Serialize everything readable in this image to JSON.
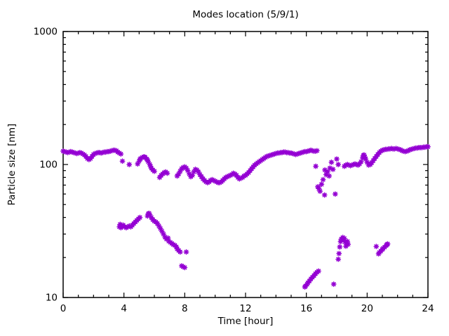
{
  "chart_data": {
    "type": "scatter",
    "title": "Modes location (5/9/1)",
    "xlabel": "Time [hour]",
    "ylabel": "Particle size [nm]",
    "xlim": [
      0,
      24
    ],
    "ylim": [
      10,
      1000
    ],
    "yscale": "log",
    "grid": false,
    "legend": "none",
    "xticks_major": [
      0,
      4,
      8,
      12,
      16,
      20,
      24
    ],
    "xtick_labels": [
      "0",
      "4",
      "8",
      "12",
      "16",
      "20",
      "24"
    ],
    "xticks_minor_step": 1,
    "yticks_major": [
      10,
      100,
      1000
    ],
    "ytick_labels": [
      "10",
      "100",
      "1000"
    ],
    "marker": {
      "shape": "asterisk",
      "color": "#9400d3",
      "size": 3.2
    },
    "background": "#ffffff",
    "axis_color": "#000000",
    "points": [
      [
        0,
        126
      ],
      [
        0.1,
        125
      ],
      [
        0.2,
        124
      ],
      [
        0.3,
        123
      ],
      [
        0.4,
        124
      ],
      [
        0.5,
        125
      ],
      [
        0.6,
        124
      ],
      [
        0.7,
        123
      ],
      [
        0.8,
        122
      ],
      [
        0.9,
        121
      ],
      [
        1,
        122
      ],
      [
        1.1,
        123
      ],
      [
        1.2,
        122
      ],
      [
        1.3,
        120
      ],
      [
        1.4,
        118
      ],
      [
        1.5,
        115
      ],
      [
        1.6,
        111
      ],
      [
        1.7,
        109
      ],
      [
        1.8,
        111
      ],
      [
        1.9,
        115
      ],
      [
        2,
        119
      ],
      [
        2.1,
        121
      ],
      [
        2.2,
        122
      ],
      [
        2.3,
        123
      ],
      [
        2.4,
        123
      ],
      [
        2.5,
        122
      ],
      [
        2.6,
        123
      ],
      [
        2.7,
        124
      ],
      [
        2.8,
        124
      ],
      [
        2.9,
        125
      ],
      [
        3,
        125
      ],
      [
        3.1,
        126
      ],
      [
        3.2,
        127
      ],
      [
        3.3,
        128
      ],
      [
        3.4,
        128
      ],
      [
        3.5,
        127
      ],
      [
        3.6,
        124
      ],
      [
        3.7,
        122
      ],
      [
        3.8,
        120
      ],
      [
        3.9,
        106
      ],
      [
        4.35,
        100
      ],
      [
        4.9,
        101
      ],
      [
        5,
        106
      ],
      [
        5.05,
        109
      ],
      [
        5.1,
        111
      ],
      [
        5.2,
        113
      ],
      [
        5.3,
        114
      ],
      [
        5.35,
        114
      ],
      [
        5.4,
        113
      ],
      [
        5.5,
        110
      ],
      [
        5.55,
        108
      ],
      [
        5.6,
        105
      ],
      [
        5.7,
        100
      ],
      [
        5.75,
        97
      ],
      [
        5.8,
        94
      ],
      [
        5.9,
        91
      ],
      [
        6,
        89
      ],
      [
        6.35,
        80
      ],
      [
        6.45,
        83
      ],
      [
        6.55,
        85
      ],
      [
        6.65,
        87
      ],
      [
        6.75,
        88
      ],
      [
        6.85,
        86
      ],
      [
        7.5,
        82
      ],
      [
        7.6,
        85
      ],
      [
        7.7,
        89
      ],
      [
        7.8,
        93
      ],
      [
        7.9,
        95
      ],
      [
        8,
        96
      ],
      [
        8.1,
        94
      ],
      [
        8.2,
        90
      ],
      [
        8.3,
        85
      ],
      [
        8.4,
        81
      ],
      [
        8.5,
        83
      ],
      [
        8.6,
        88
      ],
      [
        8.7,
        92
      ],
      [
        8.8,
        91
      ],
      [
        8.9,
        88
      ],
      [
        9,
        84
      ],
      [
        9.1,
        81
      ],
      [
        9.2,
        78
      ],
      [
        9.3,
        76
      ],
      [
        9.4,
        74
      ],
      [
        9.5,
        73
      ],
      [
        9.6,
        74
      ],
      [
        9.7,
        76
      ],
      [
        9.8,
        77
      ],
      [
        9.9,
        76
      ],
      [
        10,
        75
      ],
      [
        10.1,
        74
      ],
      [
        10.2,
        73
      ],
      [
        10.3,
        73
      ],
      [
        10.4,
        74
      ],
      [
        10.5,
        76
      ],
      [
        10.6,
        78
      ],
      [
        10.7,
        80
      ],
      [
        10.8,
        81
      ],
      [
        10.9,
        82
      ],
      [
        11,
        83
      ],
      [
        11.1,
        84
      ],
      [
        11.2,
        86
      ],
      [
        11.3,
        85
      ],
      [
        11.4,
        83
      ],
      [
        11.5,
        80
      ],
      [
        11.6,
        78
      ],
      [
        11.7,
        79
      ],
      [
        11.8,
        80
      ],
      [
        11.9,
        82
      ],
      [
        12,
        83
      ],
      [
        12.1,
        85
      ],
      [
        12.2,
        87
      ],
      [
        12.3,
        90
      ],
      [
        12.4,
        93
      ],
      [
        12.5,
        96
      ],
      [
        12.6,
        99
      ],
      [
        12.7,
        101
      ],
      [
        12.8,
        103
      ],
      [
        12.9,
        105
      ],
      [
        13,
        107
      ],
      [
        13.1,
        109
      ],
      [
        13.2,
        111
      ],
      [
        13.3,
        113
      ],
      [
        13.4,
        115
      ],
      [
        13.5,
        116
      ],
      [
        13.6,
        117
      ],
      [
        13.7,
        118
      ],
      [
        13.8,
        119
      ],
      [
        13.9,
        120
      ],
      [
        14,
        121
      ],
      [
        14.1,
        122
      ],
      [
        14.2,
        122
      ],
      [
        14.3,
        123
      ],
      [
        14.4,
        123
      ],
      [
        14.5,
        124
      ],
      [
        14.6,
        124
      ],
      [
        14.7,
        123
      ],
      [
        14.8,
        123
      ],
      [
        14.9,
        122
      ],
      [
        15,
        122
      ],
      [
        15.1,
        121
      ],
      [
        15.2,
        120
      ],
      [
        15.3,
        119
      ],
      [
        15.4,
        120
      ],
      [
        15.5,
        121
      ],
      [
        15.6,
        122
      ],
      [
        15.7,
        123
      ],
      [
        15.8,
        124
      ],
      [
        15.9,
        125
      ],
      [
        16,
        125
      ],
      [
        16.1,
        126
      ],
      [
        16.2,
        127
      ],
      [
        16.3,
        128
      ],
      [
        16.4,
        127
      ],
      [
        16.5,
        126
      ],
      [
        16.6,
        126
      ],
      [
        16.7,
        127
      ],
      [
        16.62,
        97
      ],
      [
        16.75,
        68
      ],
      [
        16.82,
        66
      ],
      [
        16.9,
        63
      ],
      [
        17,
        71
      ],
      [
        17.1,
        77
      ],
      [
        17.2,
        59
      ],
      [
        17.22,
        91
      ],
      [
        17.3,
        84
      ],
      [
        17.4,
        88
      ],
      [
        17.5,
        82
      ],
      [
        17.55,
        94
      ],
      [
        17.65,
        104
      ],
      [
        17.75,
        92
      ],
      [
        17.9,
        60
      ],
      [
        18,
        110
      ],
      [
        18.1,
        100
      ],
      [
        18.5,
        97
      ],
      [
        18.6,
        99
      ],
      [
        18.7,
        100
      ],
      [
        18.8,
        99
      ],
      [
        18.9,
        98
      ],
      [
        19,
        99
      ],
      [
        19.1,
        100
      ],
      [
        19.2,
        101
      ],
      [
        19.3,
        100
      ],
      [
        19.4,
        99
      ],
      [
        19.5,
        101
      ],
      [
        19.6,
        105
      ],
      [
        19.7,
        112
      ],
      [
        19.75,
        117
      ],
      [
        19.8,
        118
      ],
      [
        19.85,
        114
      ],
      [
        19.9,
        110
      ],
      [
        20,
        104
      ],
      [
        20.1,
        99
      ],
      [
        20.2,
        100
      ],
      [
        20.3,
        103
      ],
      [
        20.4,
        107
      ],
      [
        20.5,
        111
      ],
      [
        20.6,
        115
      ],
      [
        20.7,
        119
      ],
      [
        20.8,
        123
      ],
      [
        20.9,
        126
      ],
      [
        21,
        128
      ],
      [
        21.1,
        129
      ],
      [
        21.2,
        130
      ],
      [
        21.3,
        130
      ],
      [
        21.4,
        131
      ],
      [
        21.5,
        131
      ],
      [
        21.6,
        132
      ],
      [
        21.7,
        131
      ],
      [
        21.8,
        131
      ],
      [
        21.9,
        132
      ],
      [
        22,
        131
      ],
      [
        22.1,
        130
      ],
      [
        22.2,
        129
      ],
      [
        22.3,
        127
      ],
      [
        22.4,
        126
      ],
      [
        22.5,
        125
      ],
      [
        22.6,
        126
      ],
      [
        22.7,
        127
      ],
      [
        22.8,
        129
      ],
      [
        22.9,
        130
      ],
      [
        23,
        131
      ],
      [
        23.1,
        132
      ],
      [
        23.2,
        133
      ],
      [
        23.3,
        133
      ],
      [
        23.4,
        134
      ],
      [
        23.5,
        134
      ],
      [
        23.6,
        134
      ],
      [
        23.7,
        135
      ],
      [
        23.8,
        135
      ],
      [
        23.9,
        136
      ],
      [
        24,
        136
      ],
      [
        3.7,
        34
      ],
      [
        3.75,
        35.5
      ],
      [
        3.8,
        33.5
      ],
      [
        3.85,
        34.5
      ],
      [
        3.95,
        35
      ],
      [
        4.05,
        34
      ],
      [
        4.15,
        33.5
      ],
      [
        4.25,
        34
      ],
      [
        4.35,
        34.5
      ],
      [
        4.45,
        34
      ],
      [
        4.55,
        35
      ],
      [
        4.65,
        36
      ],
      [
        4.75,
        37
      ],
      [
        4.85,
        38
      ],
      [
        4.95,
        39
      ],
      [
        5.05,
        40
      ],
      [
        5.55,
        41
      ],
      [
        5.6,
        42.5
      ],
      [
        5.65,
        43
      ],
      [
        5.7,
        42
      ],
      [
        5.8,
        40
      ],
      [
        5.9,
        38.5
      ],
      [
        6,
        37.5
      ],
      [
        6.1,
        37
      ],
      [
        6.2,
        36
      ],
      [
        6.3,
        34.5
      ],
      [
        6.4,
        33
      ],
      [
        6.5,
        31.5
      ],
      [
        6.6,
        30
      ],
      [
        6.7,
        28.5
      ],
      [
        6.8,
        27.5
      ],
      [
        6.9,
        28
      ],
      [
        6.95,
        26.5
      ],
      [
        7.05,
        26
      ],
      [
        7.15,
        25.5
      ],
      [
        7.25,
        25
      ],
      [
        7.35,
        24.7
      ],
      [
        7.45,
        24
      ],
      [
        7.5,
        23.2
      ],
      [
        7.6,
        22.6
      ],
      [
        7.7,
        22
      ],
      [
        8.1,
        22
      ],
      [
        7.8,
        17.3
      ],
      [
        7.9,
        17
      ],
      [
        8,
        16.8
      ],
      [
        15.9,
        12
      ],
      [
        15.95,
        12.2
      ],
      [
        16.05,
        12.6
      ],
      [
        16.1,
        12.9
      ],
      [
        16.2,
        13.3
      ],
      [
        16.3,
        13.8
      ],
      [
        16.4,
        14.2
      ],
      [
        16.5,
        14.6
      ],
      [
        16.6,
        15.1
      ],
      [
        16.7,
        15.5
      ],
      [
        16.8,
        15.8
      ],
      [
        17.8,
        12.6
      ],
      [
        18.1,
        19.4
      ],
      [
        18.15,
        21.4
      ],
      [
        18.2,
        24
      ],
      [
        18.25,
        26.3
      ],
      [
        18.3,
        27.5
      ],
      [
        18.4,
        28.3
      ],
      [
        18.45,
        27.2
      ],
      [
        18.5,
        27.8
      ],
      [
        18.55,
        26.2
      ],
      [
        18.6,
        24.3
      ],
      [
        18.65,
        25.6
      ],
      [
        18.7,
        26.4
      ],
      [
        18.75,
        25.1
      ],
      [
        20.6,
        24.2
      ],
      [
        20.75,
        21.3
      ],
      [
        20.8,
        21.8
      ],
      [
        20.9,
        22.3
      ],
      [
        21,
        23
      ],
      [
        21.05,
        23.4
      ],
      [
        21.15,
        23.9
      ],
      [
        21.25,
        24.6
      ],
      [
        21.3,
        25
      ],
      [
        21.35,
        25.3
      ]
    ]
  }
}
